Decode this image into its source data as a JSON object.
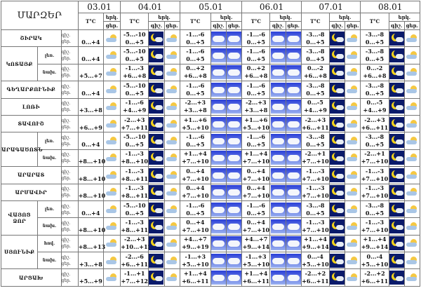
{
  "header": {
    "title": "ՄԱՐԶԵՐ",
    "temp_label": "T°C",
    "day_label": "երկ.",
    "night_short": "գիշ.",
    "day_short": "ցեր."
  },
  "dates": [
    "03.01",
    "04.01",
    "05.01",
    "06.01",
    "07.01",
    "08.01"
  ],
  "date_icons": [
    [
      "sun-cloud"
    ],
    [
      "night-cloud",
      "sun-cloud"
    ],
    [
      "cloudy",
      "cloudy"
    ],
    [
      "cloudy",
      "cloudy"
    ],
    [
      "night-cloud",
      "sun-cloud"
    ],
    [
      "night-cloud",
      "sun-cloud"
    ]
  ],
  "regions": [
    {
      "name": "ՇԻՐԱԿ",
      "rows": [
        {
          "sub": "",
          "t": [
            [
              "",
              "0...+4"
            ],
            [
              "-5...-10",
              "0...+5"
            ],
            [
              "-1...-6",
              "0...+5"
            ],
            [
              "-1...-6",
              "0...+5"
            ],
            [
              "-3...-8",
              "0...+5"
            ],
            [
              "-3...-8",
              "0...+5"
            ]
          ]
        }
      ]
    },
    {
      "name": "ԿՈՏԱՅՔ",
      "rows": [
        {
          "sub": "լեռ.",
          "t": [
            [
              "",
              "0...+4"
            ],
            [
              "-5...-10",
              "0...+5"
            ],
            [
              "-1...-6",
              "0...+5"
            ],
            [
              "-1...-6",
              "0...+5"
            ],
            [
              "-3...-8",
              "0...+5"
            ],
            [
              "-3...-8",
              "0...+5"
            ]
          ]
        },
        {
          "sub": "նախ.",
          "t": [
            [
              "",
              "+5...+7"
            ],
            [
              "-1...-3",
              "+6...+8"
            ],
            [
              "0...+2",
              "+6...+8"
            ],
            [
              "0...+2",
              "+6...+8"
            ],
            [
              "0...-2",
              "+6...+8"
            ],
            [
              "0...-2",
              "+6...+8"
            ]
          ]
        }
      ]
    },
    {
      "name": "ԳԵՂԱՐՔՈՒՆԻՔ",
      "rows": [
        {
          "sub": "",
          "t": [
            [
              "",
              "0...+4"
            ],
            [
              "-5...-10",
              "0...+5"
            ],
            [
              "-1...-6",
              "0...+5"
            ],
            [
              "-1...-6",
              "0...+5"
            ],
            [
              "-3...-8",
              "0...+5"
            ],
            [
              "-3...-8",
              "0...+5"
            ]
          ]
        }
      ]
    },
    {
      "name": "ԼՈՌԻ",
      "rows": [
        {
          "sub": "",
          "t": [
            [
              "",
              "+3...+8"
            ],
            [
              "-1...-6",
              "+4...+9"
            ],
            [
              "-2...+3",
              "+3...+8"
            ],
            [
              "-2...+3",
              "+3...+8"
            ],
            [
              "0...-5",
              "+4...+9"
            ],
            [
              "0...-5",
              "+4...+9"
            ]
          ]
        }
      ]
    },
    {
      "name": "ՏԱՎՈՒՇ",
      "rows": [
        {
          "sub": "",
          "t": [
            [
              "",
              "+6...+9"
            ],
            [
              "-2...+3",
              "+7...+11"
            ],
            [
              "+1...+6",
              "+5...+10"
            ],
            [
              "+1...+6",
              "+5...+10"
            ],
            [
              "-2...+3",
              "+6...+11"
            ],
            [
              "-2...+3",
              "+6...+11"
            ]
          ]
        }
      ]
    },
    {
      "name": "ԱՐԱԳԱԾՈՏՆ",
      "rows": [
        {
          "sub": "լեռ.",
          "t": [
            [
              "",
              "0...+4"
            ],
            [
              "-5...-10",
              "0...+5"
            ],
            [
              "-1...-6",
              "0...+5"
            ],
            [
              "-1...-6",
              "0...+5"
            ],
            [
              "-3...-8",
              "0...+5"
            ],
            [
              "-3...-8",
              "0...+5"
            ]
          ]
        },
        {
          "sub": "նախ.",
          "t": [
            [
              "",
              "+8...+10"
            ],
            [
              "-1...-3",
              "+8...+10"
            ],
            [
              "+1...+4",
              "+7...+10"
            ],
            [
              "+1...+4",
              "+7...+10"
            ],
            [
              "-2...+1",
              "+7...+10"
            ],
            [
              "-2...+1",
              "+7...+10"
            ]
          ]
        }
      ]
    },
    {
      "name": "ԱՐԱՐԱՏ",
      "rows": [
        {
          "sub": "",
          "t": [
            [
              "",
              "+8...+10"
            ],
            [
              "-1...-3",
              "+8...+11"
            ],
            [
              "0...+4",
              "+7...+10"
            ],
            [
              "0...+4",
              "+7...+10"
            ],
            [
              "-1...-3",
              "+7...+10"
            ],
            [
              "-1...-3",
              "+7...+10"
            ]
          ]
        }
      ]
    },
    {
      "name": "ԱՐՄԱՎԻՐ",
      "rows": [
        {
          "sub": "",
          "t": [
            [
              "",
              "+8...+10"
            ],
            [
              "-1...-3",
              "+8...+11"
            ],
            [
              "0...+4",
              "+7...+10"
            ],
            [
              "0...+4",
              "+7...+10"
            ],
            [
              "-1...-3",
              "+7...+10"
            ],
            [
              "-1...-3",
              "+7...+10"
            ]
          ]
        }
      ]
    },
    {
      "name": "ՎԱՅՈՑ ՁՈՐ",
      "rows": [
        {
          "sub": "լեռ.",
          "t": [
            [
              "",
              "0...+4"
            ],
            [
              "-5...-10",
              "0...+5"
            ],
            [
              "-1...-6",
              "0...+5"
            ],
            [
              "-1...-6",
              "0...+5"
            ],
            [
              "-3...-8",
              "0...+5"
            ],
            [
              "-3...-8",
              "0...+5"
            ]
          ]
        },
        {
          "sub": "նախ.",
          "t": [
            [
              "",
              "+8...+10"
            ],
            [
              "-1...-3",
              "+8...+11"
            ],
            [
              "0...+4",
              "+7...+10"
            ],
            [
              "0...+4",
              "+7...+10"
            ],
            [
              "-1...-3",
              "+7...+10"
            ],
            [
              "-1...-3",
              "+7...+10"
            ]
          ]
        }
      ]
    },
    {
      "name": "ՍՅՈՒՆԻՔ",
      "rows": [
        {
          "sub": "հով.",
          "t": [
            [
              "",
              "+8...+13"
            ],
            [
              "-2...+3",
              "+10...+15"
            ],
            [
              "+4...+7",
              "+9...+19"
            ],
            [
              "+4...+7",
              "+9...+14"
            ],
            [
              "+1...+4",
              "+9...+14"
            ],
            [
              "+1...+4",
              "+9...+14"
            ]
          ]
        },
        {
          "sub": "նախ.",
          "t": [
            [
              "",
              "+3...+8"
            ],
            [
              "-2...-6",
              "+6...+11"
            ],
            [
              "-1...+3",
              "+5...+10"
            ],
            [
              "-1...+3",
              "+5...+10"
            ],
            [
              "0...-4",
              "+5...+10"
            ],
            [
              "0...-4",
              "+5...+10"
            ]
          ]
        }
      ]
    },
    {
      "name": "ԱՐՑԱԽ",
      "rows": [
        {
          "sub": "",
          "t": [
            [
              "",
              "+5...+9"
            ],
            [
              "-1...+1",
              "+7...+12"
            ],
            [
              "+1...+4",
              "+6...+11"
            ],
            [
              "+1...+4",
              "+6...+11"
            ],
            [
              "-2...+2",
              "+6...+11"
            ],
            [
              "-2...+2",
              "+6...+11"
            ]
          ]
        }
      ]
    }
  ]
}
